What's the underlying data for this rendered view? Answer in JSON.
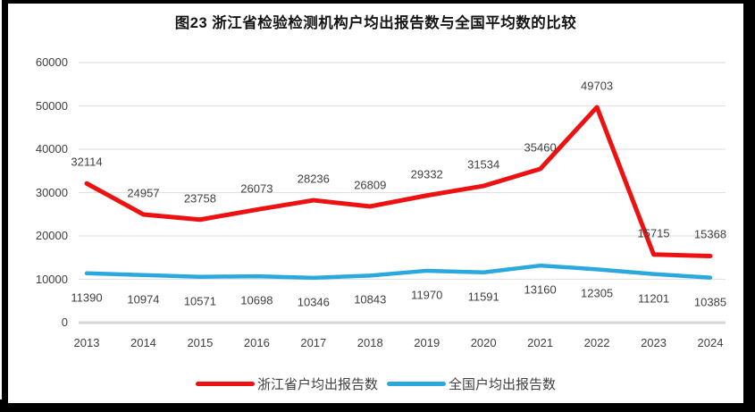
{
  "title": "图23  浙江省检验检测机构户均出报告数与全国平均数的比较",
  "chart_data": {
    "type": "line",
    "title": "图23  浙江省检验检测机构户均出报告数与全国平均数的比较",
    "categories": [
      "2013",
      "2014",
      "2015",
      "2016",
      "2017",
      "2018",
      "2019",
      "2020",
      "2021",
      "2022",
      "2023",
      "2024"
    ],
    "series": [
      {
        "name": "浙江省户均出报告数",
        "color": "#ee1111",
        "values": [
          32114,
          24957,
          23758,
          26073,
          28236,
          26809,
          29332,
          31534,
          35460,
          49703,
          15715,
          15368
        ],
        "label_position": "above"
      },
      {
        "name": "全国户均出报告数",
        "color": "#2aa9df",
        "values": [
          11390,
          10974,
          10571,
          10698,
          10346,
          10843,
          11970,
          11591,
          13160,
          12305,
          11201,
          10385
        ],
        "label_position": "below"
      }
    ],
    "ylim": [
      0,
      60000
    ],
    "yticks": [
      "0",
      "10000",
      "20000",
      "30000",
      "40000",
      "50000",
      "60000"
    ],
    "grid": "horizontal",
    "legend_position": "bottom",
    "data_labels": true
  },
  "colors": {
    "frame": "#000000",
    "panel_bg": "#ffffff",
    "gridline": "#e2e2e2",
    "axis_line": "#d6d6d6",
    "tick_text": "#404040",
    "series_red": "#ee1111",
    "series_blue": "#2aa9df"
  }
}
